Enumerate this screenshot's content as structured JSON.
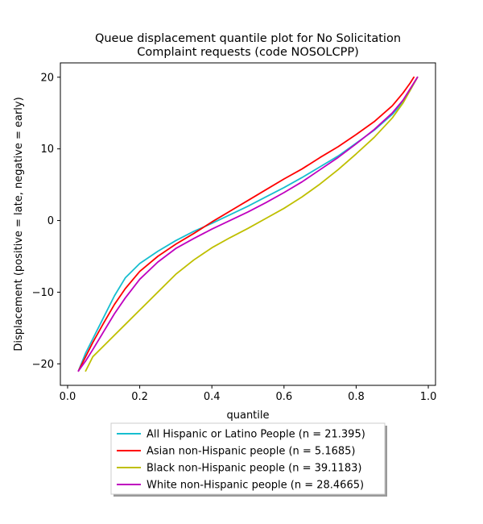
{
  "chart_data": {
    "type": "line",
    "title_lines": [
      "Queue displacement quantile plot for No Solicitation",
      "Complaint  requests (code NOSOLCPP)"
    ],
    "xlabel": "quantile",
    "ylabel": "Displacement (positive = late, negative = early)",
    "xlim": [
      -0.02,
      1.02
    ],
    "ylim": [
      -23,
      22
    ],
    "xticks": [
      0.0,
      0.2,
      0.4,
      0.6,
      0.8,
      1.0
    ],
    "xtick_labels": [
      "0.0",
      "0.2",
      "0.4",
      "0.6",
      "0.8",
      "1.0"
    ],
    "yticks": [
      -20,
      -10,
      0,
      10,
      20
    ],
    "ytick_labels": [
      "−20",
      "−10",
      "0",
      "10",
      "20"
    ],
    "grid": false,
    "legend_position": "below plot",
    "series": [
      {
        "name": "All Hispanic or Latino People (n = 21.395)",
        "color": "#17becf",
        "x": [
          0.03,
          0.05,
          0.07,
          0.1,
          0.13,
          0.16,
          0.2,
          0.25,
          0.3,
          0.35,
          0.4,
          0.45,
          0.5,
          0.55,
          0.6,
          0.65,
          0.7,
          0.75,
          0.8,
          0.85,
          0.9,
          0.93,
          0.95,
          0.97
        ],
        "y": [
          -21.0,
          -18.5,
          -16.5,
          -13.5,
          -10.5,
          -8.0,
          -6.0,
          -4.3,
          -2.8,
          -1.5,
          -0.4,
          0.8,
          2.0,
          3.3,
          4.6,
          6.0,
          7.5,
          9.0,
          10.8,
          12.6,
          14.8,
          16.5,
          18.2,
          20.0
        ]
      },
      {
        "name": "Asian non-Hispanic people (n = 5.1685)",
        "color": "#ff0000",
        "x": [
          0.03,
          0.05,
          0.07,
          0.1,
          0.13,
          0.16,
          0.2,
          0.25,
          0.3,
          0.35,
          0.4,
          0.45,
          0.5,
          0.55,
          0.6,
          0.65,
          0.7,
          0.75,
          0.8,
          0.85,
          0.9,
          0.93,
          0.95,
          0.96
        ],
        "y": [
          -21.0,
          -19.0,
          -17.0,
          -14.3,
          -11.7,
          -9.5,
          -7.1,
          -5.0,
          -3.3,
          -1.8,
          -0.2,
          1.3,
          2.8,
          4.3,
          5.8,
          7.2,
          8.8,
          10.3,
          12.0,
          13.8,
          16.0,
          17.8,
          19.2,
          20.0
        ]
      },
      {
        "name": "Black non-Hispanic people (n = 39.1183)",
        "color": "#bfbf00",
        "x": [
          0.05,
          0.07,
          0.1,
          0.13,
          0.16,
          0.2,
          0.25,
          0.3,
          0.35,
          0.4,
          0.45,
          0.5,
          0.55,
          0.6,
          0.65,
          0.7,
          0.75,
          0.8,
          0.85,
          0.9,
          0.93,
          0.95,
          0.97
        ],
        "y": [
          -21.0,
          -19.0,
          -17.5,
          -16.0,
          -14.5,
          -12.5,
          -10.0,
          -7.5,
          -5.5,
          -3.8,
          -2.4,
          -1.1,
          0.3,
          1.7,
          3.3,
          5.1,
          7.1,
          9.3,
          11.6,
          14.3,
          16.4,
          18.2,
          20.0
        ]
      },
      {
        "name": "White non-Hispanic people (n = 28.4665)",
        "color": "#bf00bf",
        "x": [
          0.03,
          0.05,
          0.07,
          0.1,
          0.13,
          0.16,
          0.2,
          0.25,
          0.3,
          0.35,
          0.4,
          0.45,
          0.5,
          0.55,
          0.6,
          0.65,
          0.7,
          0.75,
          0.8,
          0.85,
          0.9,
          0.93,
          0.95,
          0.97
        ],
        "y": [
          -21.0,
          -19.6,
          -18.0,
          -15.5,
          -13.0,
          -10.8,
          -8.2,
          -5.8,
          -3.9,
          -2.5,
          -1.2,
          0.0,
          1.2,
          2.5,
          3.9,
          5.4,
          7.1,
          8.8,
          10.7,
          12.7,
          15.0,
          16.8,
          18.4,
          20.0
        ]
      }
    ]
  }
}
